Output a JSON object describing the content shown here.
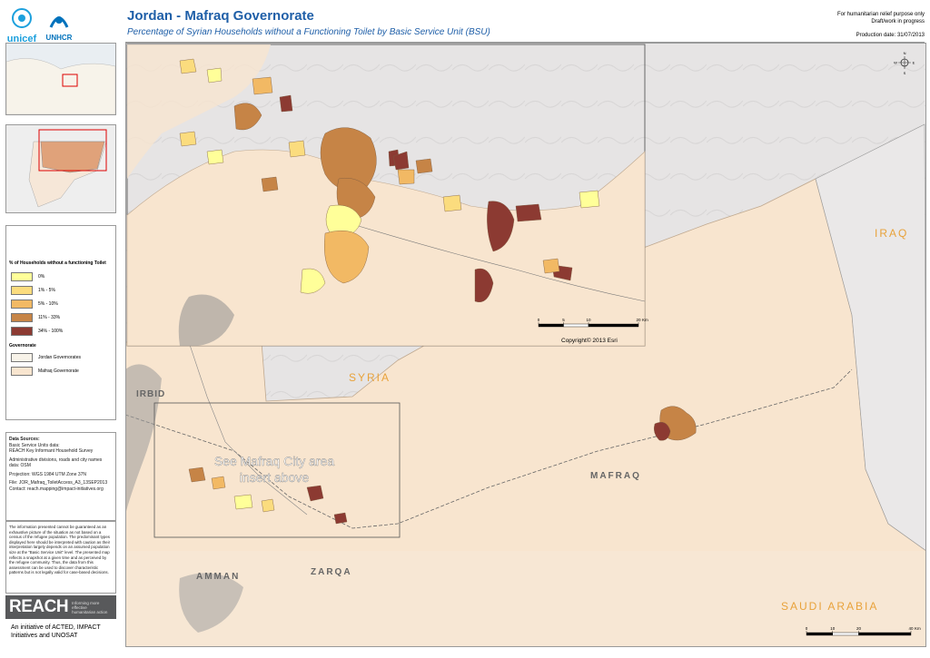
{
  "header": {
    "title": "Jordan - Mafraq Governorate",
    "subtitle": "Percentage of Syrian Households without a Functioning Toilet by Basic Service Unit (BSU)",
    "notes": [
      "For humanitarian relief purpose only",
      "Draft/work in progress"
    ],
    "production_date": "Production date: 31/07/2013"
  },
  "logos": [
    "unicef",
    "UNHCR"
  ],
  "legend": {
    "title": "% of Households without a functioning Toilet",
    "classes": [
      {
        "label": "0%",
        "color": "#ffff99"
      },
      {
        "label": "1% - 5%",
        "color": "#fbdc7e"
      },
      {
        "label": "5% - 10%",
        "color": "#f2b964"
      },
      {
        "label": "11% - 33%",
        "color": "#c68446"
      },
      {
        "label": "34% - 100%",
        "color": "#8c3a32"
      }
    ],
    "governorate_title": "Governorate",
    "governorates": [
      {
        "label": "Jordan Governorates",
        "color": "#f8f3e9"
      },
      {
        "label": "Mafraq Governorate",
        "color": "#f8e5cf"
      }
    ]
  },
  "sources": [
    "Data Sources:",
    "Basic Service Units data:",
    "REACH Key Informant Household Survey",
    "Administrative divisions, roads and city names data: OSM",
    "Projection: WGS 1984 UTM Zone 37N",
    "File: JOR_Mafraq_ToiletAccess_A3_13SEP2013",
    "Contact: reach.mapping@impact-initiatives.org"
  ],
  "disclaimer": "The information presented cannot be guaranteed as an exhaustive picture of the situation as not based on a census of the refugee population. The predominant types displayed here should be interpreted with caution as their interpretation largely depends on an assumed population size at the \"Basic Service Unit\" level. The presented map reflects a snapshot at a given time and as perceived by the refugee community. Thus, the data from this assessment can be used to discover characteristic patterns but is not legally valid for case-based decisions.",
  "reach": {
    "name": "REACH",
    "tagline": "Informing more effective humanitarian action",
    "initiative": "An initiative of ACTED, IMPACT Initiatives and UNOSAT"
  },
  "map": {
    "labels": [
      "IRAQ",
      "SYRIA",
      "IRBID",
      "MAFRAQ",
      "AMMAN",
      "ZARQA",
      "SAUDI ARABIA"
    ],
    "note": [
      "See Mafraq City area",
      "insert above"
    ],
    "copyright": "Copyright© 2013 Esri",
    "compass": [
      "N",
      "E",
      "S",
      "W"
    ],
    "inset_scale": {
      "ticks": [
        0,
        5,
        10,
        20
      ],
      "unit": "Km"
    },
    "main_scale": {
      "ticks": [
        0,
        10,
        20,
        40
      ],
      "unit": "Km"
    }
  }
}
